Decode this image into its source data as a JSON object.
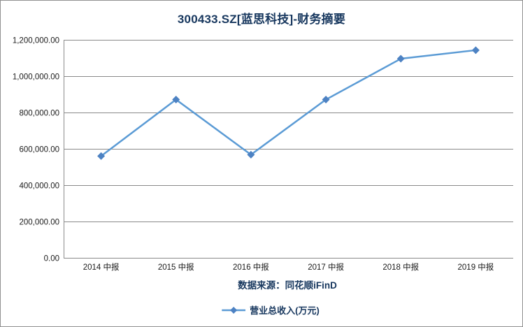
{
  "title": "300433.SZ[蓝思科技]-财务摘要",
  "source_label": "数据来源：同花顺iFinD",
  "legend": {
    "label": "营业总收入(万元)"
  },
  "colors": {
    "title_text": "#17375E",
    "line": "#5B9BD5",
    "marker": "#4D82C3",
    "grid": "#8A8A8A",
    "axis": "#8A8A8A",
    "tick_text": "#1A1A1A",
    "frame_border": "#919191"
  },
  "chart_data": {
    "type": "line",
    "title": "300433.SZ[蓝思科技]-财务摘要",
    "categories": [
      "2014 中报",
      "2015 中报",
      "2016 中报",
      "2017 中报",
      "2018 中报",
      "2019 中报"
    ],
    "series": [
      {
        "name": "营业总收入(万元)",
        "values": [
          560000,
          871000,
          568000,
          871000,
          1096000,
          1143000
        ]
      }
    ],
    "xlabel": "",
    "ylabel": "",
    "ylim": [
      0,
      1200000
    ],
    "ytick_step": 200000,
    "ytick_labels": [
      "0.00",
      "200,000.00",
      "400,000.00",
      "600,000.00",
      "800,000.00",
      "1,000,000.00",
      "1,200,000.00"
    ],
    "grid": true,
    "marker_shape": "diamond",
    "legend_position": "bottom"
  }
}
